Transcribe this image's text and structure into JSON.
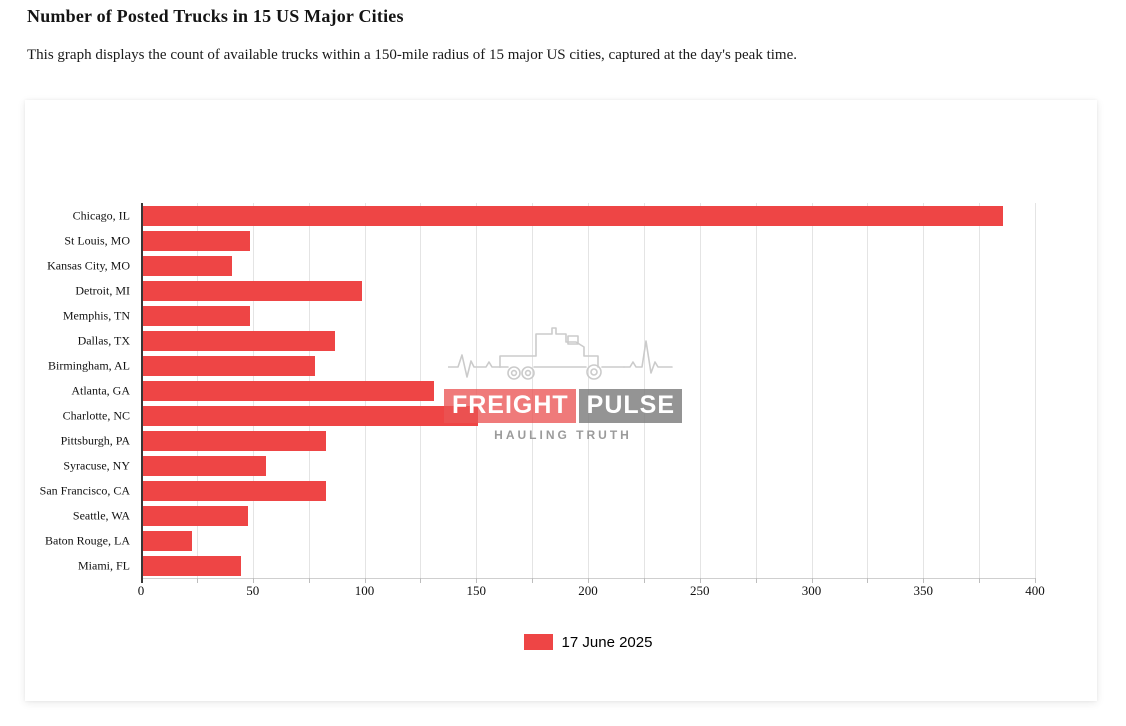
{
  "page": {
    "title": "Number of Posted Trucks in 15 US Major Cities",
    "subtitle": "This graph displays the count of available trucks within a 150-mile radius of 15 major US cities, captured at the day's peak time."
  },
  "watermark": {
    "brand_left": "FREIGHT",
    "brand_right": "PULSE",
    "tagline": "HAULING TRUTH"
  },
  "legend": {
    "label": "17 June 2025",
    "color": "#ee4545"
  },
  "chart_data": {
    "type": "bar",
    "orientation": "horizontal",
    "title": "Number of Posted Trucks in 15 US Major Cities",
    "categories": [
      "Chicago, IL",
      "St Louis, MO",
      "Kansas City, MO",
      "Detroit, MI",
      "Memphis, TN",
      "Dallas, TX",
      "Birmingham, AL",
      "Atlanta, GA",
      "Charlotte, NC",
      "Pittsburgh, PA",
      "Syracuse, NY",
      "San Francisco, CA",
      "Seattle, WA",
      "Baton Rouge, LA",
      "Miami, FL"
    ],
    "series": [
      {
        "name": "17 June 2025",
        "values": [
          385,
          48,
          40,
          98,
          48,
          86,
          77,
          130,
          150,
          82,
          55,
          82,
          47,
          22,
          44
        ]
      }
    ],
    "xlabel": "",
    "ylabel": "",
    "xlim": [
      0,
      400
    ],
    "x_tick_step": 50,
    "minor_tick_step": 25,
    "grid": true,
    "bar_color": "#ee4545",
    "legend_position": "bottom-center"
  }
}
